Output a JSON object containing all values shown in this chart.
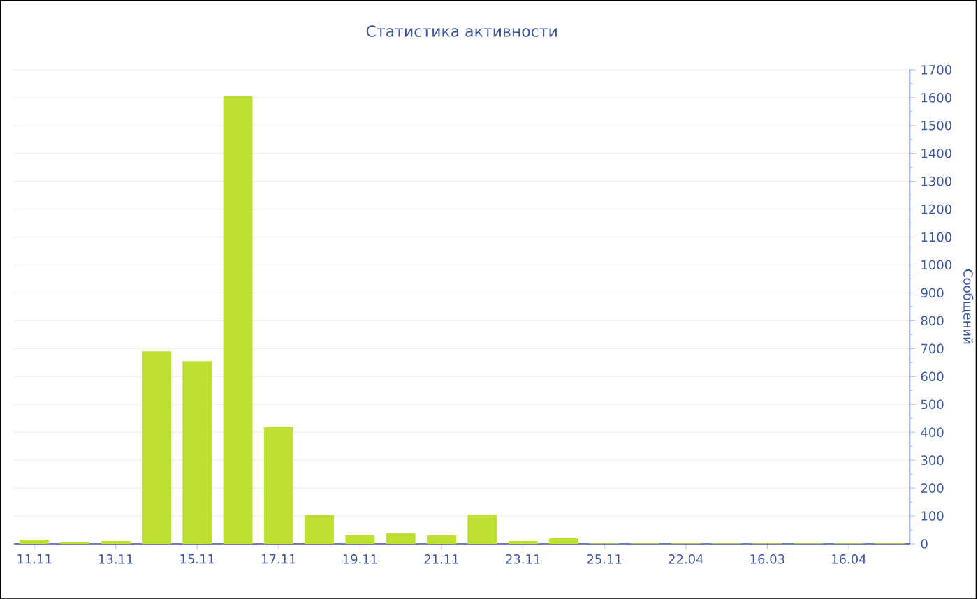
{
  "chart_data": {
    "type": "bar",
    "title": "Статистика активности",
    "ylabel": "Сообщений",
    "categories": [
      "11.11",
      null,
      "13.11",
      null,
      "15.11",
      null,
      "17.11",
      null,
      "19.11",
      null,
      "21.11",
      null,
      "23.11",
      null,
      "25.11",
      null,
      "22.04",
      null,
      "16.03",
      null,
      "16.04",
      null
    ],
    "values": [
      15,
      5,
      10,
      690,
      655,
      1605,
      418,
      103,
      30,
      38,
      30,
      105,
      10,
      20,
      2,
      2,
      2,
      2,
      2,
      2,
      2,
      2
    ],
    "color": "#bde032",
    "ylim": [
      0,
      1700
    ],
    "yticks": [
      0,
      100,
      200,
      300,
      400,
      500,
      600,
      700,
      800,
      900,
      1000,
      1100,
      1200,
      1300,
      1400,
      1500,
      1600,
      1700
    ],
    "grid": "y"
  }
}
